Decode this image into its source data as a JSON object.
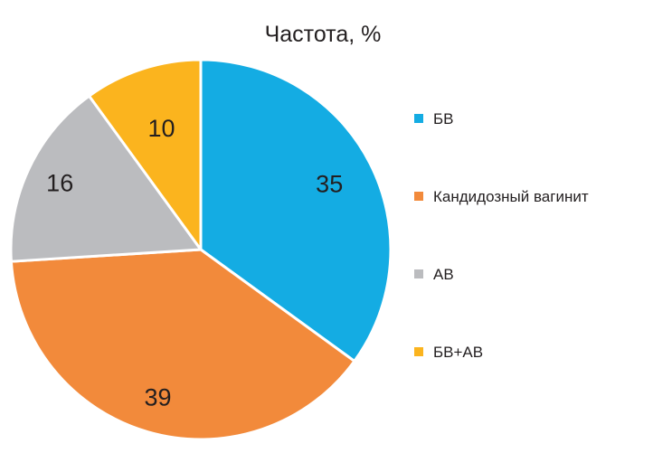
{
  "chart_data": {
    "type": "pie",
    "title": "Частота, %",
    "start_angle_deg": 0,
    "direction": "clockwise",
    "legend_position": "right",
    "slices": [
      {
        "label": "БВ",
        "value": 35,
        "color": "#14ace3"
      },
      {
        "label": "Кандидозный вагинит",
        "value": 39,
        "color": "#f28a3b"
      },
      {
        "label": "АВ",
        "value": 16,
        "color": "#bbbcbf"
      },
      {
        "label": "БВ+АВ",
        "value": 10,
        "color": "#fbb41e"
      }
    ]
  }
}
